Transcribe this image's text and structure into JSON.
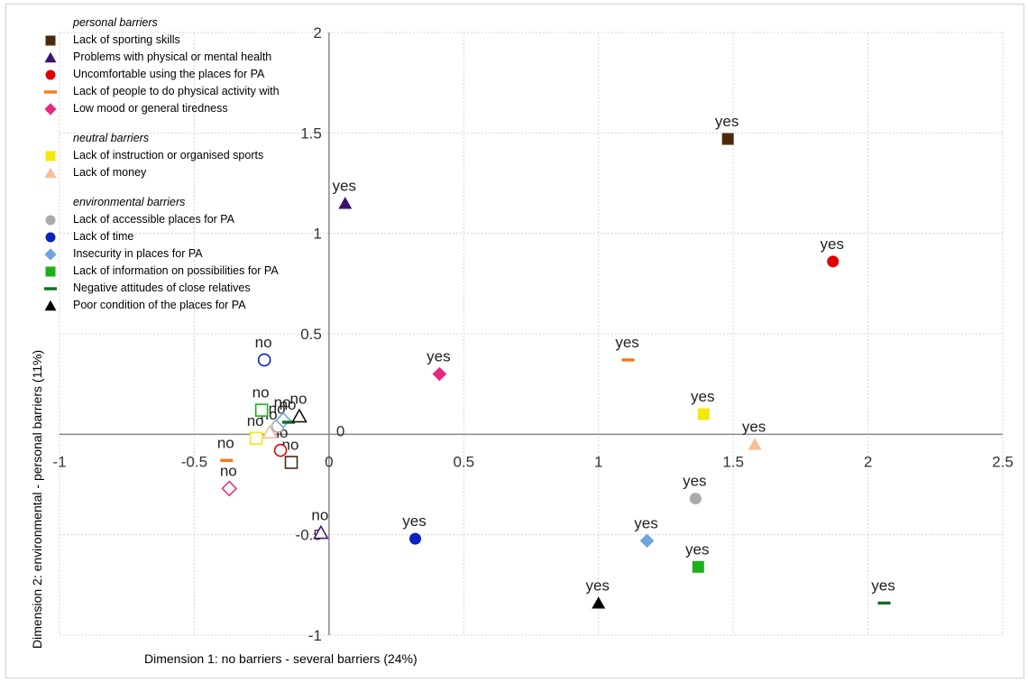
{
  "chart_data": {
    "type": "scatter",
    "xlabel": "Dimension 1: no barriers - several barriers (24%)",
    "ylabel": "Dimension 2:  environmental - personal barriers (11%)",
    "xlim": [
      -1,
      2.5
    ],
    "ylim": [
      -1,
      2
    ],
    "x_ticks": [
      "-1",
      "-0.5",
      "0",
      "0.5",
      "1",
      "1.5",
      "2",
      "2.5"
    ],
    "x_tick_values": [
      -1,
      -0.5,
      0,
      0.5,
      1,
      1.5,
      2,
      2.5
    ],
    "y_ticks": [
      "-1",
      "-0.5",
      "0",
      "0.5",
      "1",
      "1.5",
      "2"
    ],
    "y_tick_values": [
      -1,
      -0.5,
      0,
      0.5,
      1,
      1.5,
      2
    ],
    "grid": true,
    "legend_position": "top-left",
    "groups": [
      {
        "title": "personal barriers",
        "series": [
          {
            "name": "Lack of sporting skills",
            "marker": "square",
            "color": "#4a2a0e",
            "points": [
              {
                "label": "yes",
                "x": 1.48,
                "y": 1.47,
                "filled": true
              },
              {
                "label": "no",
                "x": -0.14,
                "y": -0.14,
                "filled": false
              }
            ]
          },
          {
            "name": "Problems with physical or mental health",
            "marker": "triangle",
            "color": "#3b1270",
            "points": [
              {
                "label": "yes",
                "x": 0.06,
                "y": 1.15,
                "filled": true
              },
              {
                "label": "no",
                "x": -0.03,
                "y": -0.49,
                "filled": false
              }
            ]
          },
          {
            "name": "Uncomfortable using the places for PA",
            "marker": "circle",
            "color": "#e00000",
            "points": [
              {
                "label": "yes",
                "x": 1.87,
                "y": 0.86,
                "filled": true
              },
              {
                "label": "no",
                "x": -0.18,
                "y": -0.08,
                "filled": false
              }
            ]
          },
          {
            "name": "Lack of people to do physical activity with",
            "marker": "dash",
            "color": "#f07a1a",
            "points": [
              {
                "label": "yes",
                "x": 1.11,
                "y": 0.37,
                "filled": true
              },
              {
                "label": "no",
                "x": -0.38,
                "y": -0.13,
                "filled": true
              }
            ]
          },
          {
            "name": "Low mood or general tiredness",
            "marker": "diamond",
            "color": "#e6287e",
            "points": [
              {
                "label": "yes",
                "x": 0.41,
                "y": 0.3,
                "filled": true
              },
              {
                "label": "no",
                "x": -0.37,
                "y": -0.27,
                "filled": false
              }
            ]
          }
        ]
      },
      {
        "title": "neutral barriers",
        "series": [
          {
            "name": "Lack of instruction or organised sports",
            "marker": "square",
            "color": "#f4e80e",
            "points": [
              {
                "label": "yes",
                "x": 1.39,
                "y": 0.1,
                "filled": true
              },
              {
                "label": "no",
                "x": -0.27,
                "y": -0.02,
                "filled": false
              }
            ]
          },
          {
            "name": "Lack of money",
            "marker": "triangle",
            "color": "#f7bd96",
            "points": [
              {
                "label": "yes",
                "x": 1.58,
                "y": -0.05,
                "filled": true
              },
              {
                "label": "no",
                "x": -0.22,
                "y": 0.01,
                "filled": false
              }
            ]
          }
        ]
      },
      {
        "title": "environmental barriers",
        "series": [
          {
            "name": "Lack of accessible places for PA",
            "marker": "circle",
            "color": "#aaaaaa",
            "points": [
              {
                "label": "yes",
                "x": 1.36,
                "y": -0.32,
                "filled": true
              },
              {
                "label": "no",
                "x": -0.19,
                "y": 0.04,
                "filled": false
              }
            ]
          },
          {
            "name": "Lack of time",
            "marker": "circle",
            "color": "#0a22c4",
            "points": [
              {
                "label": "yes",
                "x": 0.32,
                "y": -0.52,
                "filled": true
              },
              {
                "label": "no",
                "x": -0.24,
                "y": 0.37,
                "filled": false
              }
            ]
          },
          {
            "name": "Insecurity in places for PA",
            "marker": "diamond",
            "color": "#6fa4dd",
            "points": [
              {
                "label": "yes",
                "x": 1.18,
                "y": -0.53,
                "filled": true
              },
              {
                "label": "no",
                "x": -0.17,
                "y": 0.07,
                "filled": false
              }
            ]
          },
          {
            "name": "Lack of information on possibilities for PA",
            "marker": "square",
            "color": "#1cb01c",
            "points": [
              {
                "label": "yes",
                "x": 1.37,
                "y": -0.66,
                "filled": true
              },
              {
                "label": "no",
                "x": -0.25,
                "y": 0.12,
                "filled": false
              }
            ]
          },
          {
            "name": "Negative attitudes of close relatives",
            "marker": "dash",
            "color": "#0e6e1e",
            "points": [
              {
                "label": "yes",
                "x": 2.06,
                "y": -0.84,
                "filled": true
              },
              {
                "label": "no",
                "x": -0.15,
                "y": 0.06,
                "filled": true
              }
            ]
          },
          {
            "name": "Poor condition of the places for PA",
            "marker": "triangle",
            "color": "#000000",
            "points": [
              {
                "label": "yes",
                "x": 1.0,
                "y": -0.84,
                "filled": true
              },
              {
                "label": "no",
                "x": -0.11,
                "y": 0.09,
                "filled": false
              }
            ]
          }
        ]
      }
    ]
  }
}
